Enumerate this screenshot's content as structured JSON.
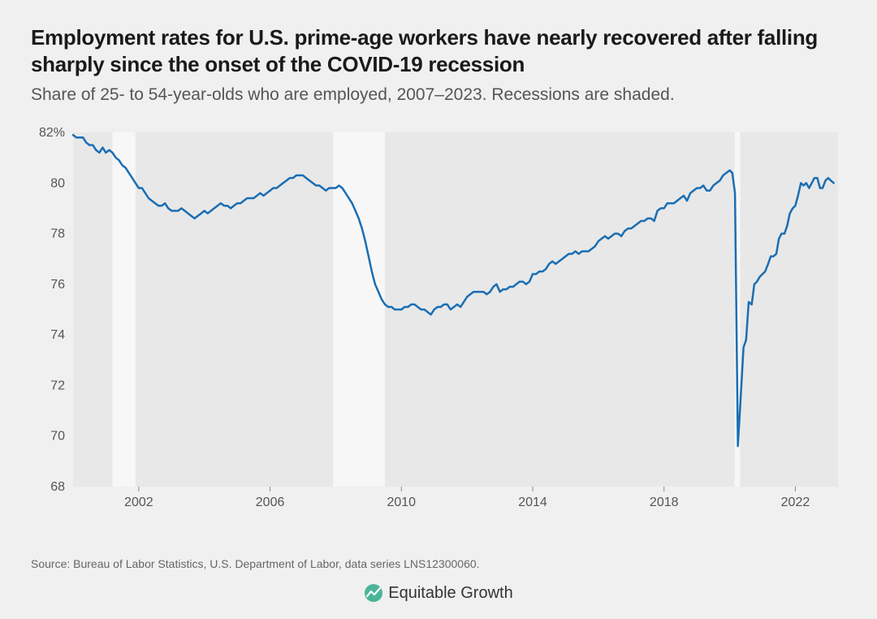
{
  "title": "Employment rates for U.S. prime-age workers have nearly recovered after falling sharply since the onset of the COVID-19 recession",
  "subtitle": "Share of 25- to 54-year-olds who are employed, 2007–2023. Recessions are shaded.",
  "source": "Source: Bureau of Labor Statistics, U.S. Department of Labor, data series LNS12300060.",
  "logo_text": "Equitable Growth",
  "chart": {
    "type": "line",
    "background_color": "#e8e8e8",
    "plot_background_color": "#e8e8e8",
    "line_color": "#1a6eb3",
    "line_width": 2.5,
    "recession_band_color": "#f7f7f7",
    "axis_label_color": "#555",
    "axis_label_fontsize": 16,
    "x_domain": [
      2000,
      2023.3
    ],
    "y_domain": [
      68,
      82
    ],
    "y_ticks": [
      68,
      70,
      72,
      74,
      76,
      78,
      80,
      82
    ],
    "y_tick_labels": [
      "68",
      "70",
      "72",
      "74",
      "76",
      "78",
      "80",
      "82%"
    ],
    "x_ticks": [
      2002,
      2006,
      2010,
      2014,
      2018,
      2022
    ],
    "x_tick_labels": [
      "2002",
      "2006",
      "2010",
      "2014",
      "2018",
      "2022"
    ],
    "recessions": [
      {
        "start": 2001.2,
        "end": 2001.9
      },
      {
        "start": 2007.92,
        "end": 2009.5
      },
      {
        "start": 2020.15,
        "end": 2020.32
      }
    ],
    "series": [
      {
        "x": 2000.0,
        "y": 81.9
      },
      {
        "x": 2000.1,
        "y": 81.8
      },
      {
        "x": 2000.2,
        "y": 81.8
      },
      {
        "x": 2000.3,
        "y": 81.8
      },
      {
        "x": 2000.4,
        "y": 81.6
      },
      {
        "x": 2000.5,
        "y": 81.5
      },
      {
        "x": 2000.6,
        "y": 81.5
      },
      {
        "x": 2000.7,
        "y": 81.3
      },
      {
        "x": 2000.8,
        "y": 81.2
      },
      {
        "x": 2000.9,
        "y": 81.4
      },
      {
        "x": 2001.0,
        "y": 81.2
      },
      {
        "x": 2001.1,
        "y": 81.3
      },
      {
        "x": 2001.2,
        "y": 81.2
      },
      {
        "x": 2001.3,
        "y": 81.0
      },
      {
        "x": 2001.4,
        "y": 80.9
      },
      {
        "x": 2001.5,
        "y": 80.7
      },
      {
        "x": 2001.6,
        "y": 80.6
      },
      {
        "x": 2001.7,
        "y": 80.4
      },
      {
        "x": 2001.8,
        "y": 80.2
      },
      {
        "x": 2001.9,
        "y": 80.0
      },
      {
        "x": 2002.0,
        "y": 79.8
      },
      {
        "x": 2002.1,
        "y": 79.8
      },
      {
        "x": 2002.2,
        "y": 79.6
      },
      {
        "x": 2002.3,
        "y": 79.4
      },
      {
        "x": 2002.4,
        "y": 79.3
      },
      {
        "x": 2002.5,
        "y": 79.2
      },
      {
        "x": 2002.6,
        "y": 79.1
      },
      {
        "x": 2002.7,
        "y": 79.1
      },
      {
        "x": 2002.8,
        "y": 79.2
      },
      {
        "x": 2002.9,
        "y": 79.0
      },
      {
        "x": 2003.0,
        "y": 78.9
      },
      {
        "x": 2003.1,
        "y": 78.9
      },
      {
        "x": 2003.2,
        "y": 78.9
      },
      {
        "x": 2003.3,
        "y": 79.0
      },
      {
        "x": 2003.4,
        "y": 78.9
      },
      {
        "x": 2003.5,
        "y": 78.8
      },
      {
        "x": 2003.6,
        "y": 78.7
      },
      {
        "x": 2003.7,
        "y": 78.6
      },
      {
        "x": 2003.8,
        "y": 78.7
      },
      {
        "x": 2003.9,
        "y": 78.8
      },
      {
        "x": 2004.0,
        "y": 78.9
      },
      {
        "x": 2004.1,
        "y": 78.8
      },
      {
        "x": 2004.2,
        "y": 78.9
      },
      {
        "x": 2004.3,
        "y": 79.0
      },
      {
        "x": 2004.4,
        "y": 79.1
      },
      {
        "x": 2004.5,
        "y": 79.2
      },
      {
        "x": 2004.6,
        "y": 79.1
      },
      {
        "x": 2004.7,
        "y": 79.1
      },
      {
        "x": 2004.8,
        "y": 79.0
      },
      {
        "x": 2004.9,
        "y": 79.1
      },
      {
        "x": 2005.0,
        "y": 79.2
      },
      {
        "x": 2005.1,
        "y": 79.2
      },
      {
        "x": 2005.2,
        "y": 79.3
      },
      {
        "x": 2005.3,
        "y": 79.4
      },
      {
        "x": 2005.4,
        "y": 79.4
      },
      {
        "x": 2005.5,
        "y": 79.4
      },
      {
        "x": 2005.6,
        "y": 79.5
      },
      {
        "x": 2005.7,
        "y": 79.6
      },
      {
        "x": 2005.8,
        "y": 79.5
      },
      {
        "x": 2005.9,
        "y": 79.6
      },
      {
        "x": 2006.0,
        "y": 79.7
      },
      {
        "x": 2006.1,
        "y": 79.8
      },
      {
        "x": 2006.2,
        "y": 79.8
      },
      {
        "x": 2006.3,
        "y": 79.9
      },
      {
        "x": 2006.4,
        "y": 80.0
      },
      {
        "x": 2006.5,
        "y": 80.1
      },
      {
        "x": 2006.6,
        "y": 80.2
      },
      {
        "x": 2006.7,
        "y": 80.2
      },
      {
        "x": 2006.8,
        "y": 80.3
      },
      {
        "x": 2006.9,
        "y": 80.3
      },
      {
        "x": 2007.0,
        "y": 80.3
      },
      {
        "x": 2007.1,
        "y": 80.2
      },
      {
        "x": 2007.2,
        "y": 80.1
      },
      {
        "x": 2007.3,
        "y": 80.0
      },
      {
        "x": 2007.4,
        "y": 79.9
      },
      {
        "x": 2007.5,
        "y": 79.9
      },
      {
        "x": 2007.6,
        "y": 79.8
      },
      {
        "x": 2007.7,
        "y": 79.7
      },
      {
        "x": 2007.8,
        "y": 79.8
      },
      {
        "x": 2007.9,
        "y": 79.8
      },
      {
        "x": 2008.0,
        "y": 79.8
      },
      {
        "x": 2008.1,
        "y": 79.9
      },
      {
        "x": 2008.2,
        "y": 79.8
      },
      {
        "x": 2008.3,
        "y": 79.6
      },
      {
        "x": 2008.4,
        "y": 79.4
      },
      {
        "x": 2008.5,
        "y": 79.2
      },
      {
        "x": 2008.6,
        "y": 78.9
      },
      {
        "x": 2008.7,
        "y": 78.6
      },
      {
        "x": 2008.8,
        "y": 78.2
      },
      {
        "x": 2008.9,
        "y": 77.7
      },
      {
        "x": 2009.0,
        "y": 77.1
      },
      {
        "x": 2009.1,
        "y": 76.5
      },
      {
        "x": 2009.2,
        "y": 76.0
      },
      {
        "x": 2009.3,
        "y": 75.7
      },
      {
        "x": 2009.4,
        "y": 75.4
      },
      {
        "x": 2009.5,
        "y": 75.2
      },
      {
        "x": 2009.6,
        "y": 75.1
      },
      {
        "x": 2009.7,
        "y": 75.1
      },
      {
        "x": 2009.8,
        "y": 75.0
      },
      {
        "x": 2009.9,
        "y": 75.0
      },
      {
        "x": 2010.0,
        "y": 75.0
      },
      {
        "x": 2010.1,
        "y": 75.1
      },
      {
        "x": 2010.2,
        "y": 75.1
      },
      {
        "x": 2010.3,
        "y": 75.2
      },
      {
        "x": 2010.4,
        "y": 75.2
      },
      {
        "x": 2010.5,
        "y": 75.1
      },
      {
        "x": 2010.6,
        "y": 75.0
      },
      {
        "x": 2010.7,
        "y": 75.0
      },
      {
        "x": 2010.8,
        "y": 74.9
      },
      {
        "x": 2010.9,
        "y": 74.8
      },
      {
        "x": 2011.0,
        "y": 75.0
      },
      {
        "x": 2011.1,
        "y": 75.1
      },
      {
        "x": 2011.2,
        "y": 75.1
      },
      {
        "x": 2011.3,
        "y": 75.2
      },
      {
        "x": 2011.4,
        "y": 75.2
      },
      {
        "x": 2011.5,
        "y": 75.0
      },
      {
        "x": 2011.6,
        "y": 75.1
      },
      {
        "x": 2011.7,
        "y": 75.2
      },
      {
        "x": 2011.8,
        "y": 75.1
      },
      {
        "x": 2011.9,
        "y": 75.3
      },
      {
        "x": 2012.0,
        "y": 75.5
      },
      {
        "x": 2012.1,
        "y": 75.6
      },
      {
        "x": 2012.2,
        "y": 75.7
      },
      {
        "x": 2012.3,
        "y": 75.7
      },
      {
        "x": 2012.4,
        "y": 75.7
      },
      {
        "x": 2012.5,
        "y": 75.7
      },
      {
        "x": 2012.6,
        "y": 75.6
      },
      {
        "x": 2012.7,
        "y": 75.7
      },
      {
        "x": 2012.8,
        "y": 75.9
      },
      {
        "x": 2012.9,
        "y": 76.0
      },
      {
        "x": 2013.0,
        "y": 75.7
      },
      {
        "x": 2013.1,
        "y": 75.8
      },
      {
        "x": 2013.2,
        "y": 75.8
      },
      {
        "x": 2013.3,
        "y": 75.9
      },
      {
        "x": 2013.4,
        "y": 75.9
      },
      {
        "x": 2013.5,
        "y": 76.0
      },
      {
        "x": 2013.6,
        "y": 76.1
      },
      {
        "x": 2013.7,
        "y": 76.1
      },
      {
        "x": 2013.8,
        "y": 76.0
      },
      {
        "x": 2013.9,
        "y": 76.1
      },
      {
        "x": 2014.0,
        "y": 76.4
      },
      {
        "x": 2014.1,
        "y": 76.4
      },
      {
        "x": 2014.2,
        "y": 76.5
      },
      {
        "x": 2014.3,
        "y": 76.5
      },
      {
        "x": 2014.4,
        "y": 76.6
      },
      {
        "x": 2014.5,
        "y": 76.8
      },
      {
        "x": 2014.6,
        "y": 76.9
      },
      {
        "x": 2014.7,
        "y": 76.8
      },
      {
        "x": 2014.8,
        "y": 76.9
      },
      {
        "x": 2014.9,
        "y": 77.0
      },
      {
        "x": 2015.0,
        "y": 77.1
      },
      {
        "x": 2015.1,
        "y": 77.2
      },
      {
        "x": 2015.2,
        "y": 77.2
      },
      {
        "x": 2015.3,
        "y": 77.3
      },
      {
        "x": 2015.4,
        "y": 77.2
      },
      {
        "x": 2015.5,
        "y": 77.3
      },
      {
        "x": 2015.6,
        "y": 77.3
      },
      {
        "x": 2015.7,
        "y": 77.3
      },
      {
        "x": 2015.8,
        "y": 77.4
      },
      {
        "x": 2015.9,
        "y": 77.5
      },
      {
        "x": 2016.0,
        "y": 77.7
      },
      {
        "x": 2016.1,
        "y": 77.8
      },
      {
        "x": 2016.2,
        "y": 77.9
      },
      {
        "x": 2016.3,
        "y": 77.8
      },
      {
        "x": 2016.4,
        "y": 77.9
      },
      {
        "x": 2016.5,
        "y": 78.0
      },
      {
        "x": 2016.6,
        "y": 78.0
      },
      {
        "x": 2016.7,
        "y": 77.9
      },
      {
        "x": 2016.8,
        "y": 78.1
      },
      {
        "x": 2016.9,
        "y": 78.2
      },
      {
        "x": 2017.0,
        "y": 78.2
      },
      {
        "x": 2017.1,
        "y": 78.3
      },
      {
        "x": 2017.2,
        "y": 78.4
      },
      {
        "x": 2017.3,
        "y": 78.5
      },
      {
        "x": 2017.4,
        "y": 78.5
      },
      {
        "x": 2017.5,
        "y": 78.6
      },
      {
        "x": 2017.6,
        "y": 78.6
      },
      {
        "x": 2017.7,
        "y": 78.5
      },
      {
        "x": 2017.8,
        "y": 78.9
      },
      {
        "x": 2017.9,
        "y": 79.0
      },
      {
        "x": 2018.0,
        "y": 79.0
      },
      {
        "x": 2018.1,
        "y": 79.2
      },
      {
        "x": 2018.2,
        "y": 79.2
      },
      {
        "x": 2018.3,
        "y": 79.2
      },
      {
        "x": 2018.4,
        "y": 79.3
      },
      {
        "x": 2018.5,
        "y": 79.4
      },
      {
        "x": 2018.6,
        "y": 79.5
      },
      {
        "x": 2018.7,
        "y": 79.3
      },
      {
        "x": 2018.8,
        "y": 79.6
      },
      {
        "x": 2018.9,
        "y": 79.7
      },
      {
        "x": 2019.0,
        "y": 79.8
      },
      {
        "x": 2019.1,
        "y": 79.8
      },
      {
        "x": 2019.2,
        "y": 79.9
      },
      {
        "x": 2019.3,
        "y": 79.7
      },
      {
        "x": 2019.4,
        "y": 79.7
      },
      {
        "x": 2019.5,
        "y": 79.9
      },
      {
        "x": 2019.6,
        "y": 80.0
      },
      {
        "x": 2019.7,
        "y": 80.1
      },
      {
        "x": 2019.8,
        "y": 80.3
      },
      {
        "x": 2019.9,
        "y": 80.4
      },
      {
        "x": 2020.0,
        "y": 80.5
      },
      {
        "x": 2020.08,
        "y": 80.4
      },
      {
        "x": 2020.16,
        "y": 79.6
      },
      {
        "x": 2020.25,
        "y": 69.6
      },
      {
        "x": 2020.33,
        "y": 71.4
      },
      {
        "x": 2020.42,
        "y": 73.5
      },
      {
        "x": 2020.5,
        "y": 73.8
      },
      {
        "x": 2020.58,
        "y": 75.3
      },
      {
        "x": 2020.67,
        "y": 75.2
      },
      {
        "x": 2020.75,
        "y": 76.0
      },
      {
        "x": 2020.83,
        "y": 76.1
      },
      {
        "x": 2020.92,
        "y": 76.3
      },
      {
        "x": 2021.0,
        "y": 76.4
      },
      {
        "x": 2021.08,
        "y": 76.5
      },
      {
        "x": 2021.17,
        "y": 76.8
      },
      {
        "x": 2021.25,
        "y": 77.1
      },
      {
        "x": 2021.33,
        "y": 77.1
      },
      {
        "x": 2021.42,
        "y": 77.2
      },
      {
        "x": 2021.5,
        "y": 77.8
      },
      {
        "x": 2021.58,
        "y": 78.0
      },
      {
        "x": 2021.67,
        "y": 78.0
      },
      {
        "x": 2021.75,
        "y": 78.3
      },
      {
        "x": 2021.83,
        "y": 78.8
      },
      {
        "x": 2021.92,
        "y": 79.0
      },
      {
        "x": 2022.0,
        "y": 79.1
      },
      {
        "x": 2022.08,
        "y": 79.5
      },
      {
        "x": 2022.17,
        "y": 80.0
      },
      {
        "x": 2022.25,
        "y": 79.9
      },
      {
        "x": 2022.33,
        "y": 80.0
      },
      {
        "x": 2022.42,
        "y": 79.8
      },
      {
        "x": 2022.5,
        "y": 80.0
      },
      {
        "x": 2022.58,
        "y": 80.2
      },
      {
        "x": 2022.67,
        "y": 80.2
      },
      {
        "x": 2022.75,
        "y": 79.8
      },
      {
        "x": 2022.83,
        "y": 79.8
      },
      {
        "x": 2022.92,
        "y": 80.1
      },
      {
        "x": 2023.0,
        "y": 80.2
      },
      {
        "x": 2023.08,
        "y": 80.1
      },
      {
        "x": 2023.17,
        "y": 80.0
      }
    ]
  },
  "logo_icon_color": "#4ab59a"
}
